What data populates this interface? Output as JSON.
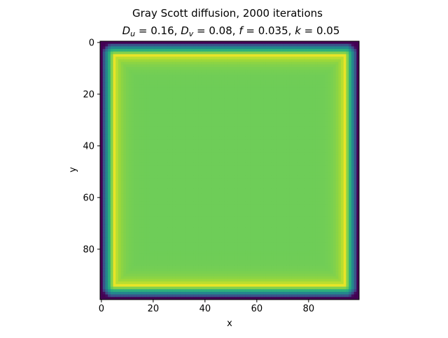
{
  "chart_data": {
    "type": "heatmap",
    "title_line1": "Gray Scott diffusion, 2000 iterations",
    "title_line2_parts": {
      "du_sym": "D",
      "du_sub": "u",
      "du_val": " = 0.16, ",
      "dv_sym": "D",
      "dv_sub": "v",
      "dv_val": " = 0.08, ",
      "f_sym": "f",
      "f_val": " = 0.035, ",
      "k_sym": "k",
      "k_val": " = 0.05"
    },
    "xlabel": "x",
    "ylabel": "y",
    "grid_size": [
      100,
      100
    ],
    "xlim": [
      -0.5,
      99.5
    ],
    "ylim": [
      99.5,
      -0.5
    ],
    "x_ticks": [
      0,
      20,
      40,
      60,
      80
    ],
    "y_ticks": [
      0,
      20,
      40,
      60,
      80
    ],
    "x_tick_labels": [
      "0",
      "20",
      "40",
      "60",
      "80"
    ],
    "y_tick_labels": [
      "0",
      "20",
      "40",
      "60",
      "80"
    ],
    "grid": false,
    "colormap": "viridis",
    "value_range": [
      0,
      1
    ],
    "pattern": {
      "description_values": "boundary value 0 at edges, ring of high values near the border, plateau in the interior",
      "edge_value": 0.0,
      "ring_peak_value": 0.97,
      "ring_distance_from_edge": 5,
      "interior_value": 0.78
    }
  },
  "colors": {
    "viridis_low": "#440154",
    "viridis_mid": "#21918c",
    "viridis_high": "#fde725",
    "interior": "#7ad151"
  }
}
